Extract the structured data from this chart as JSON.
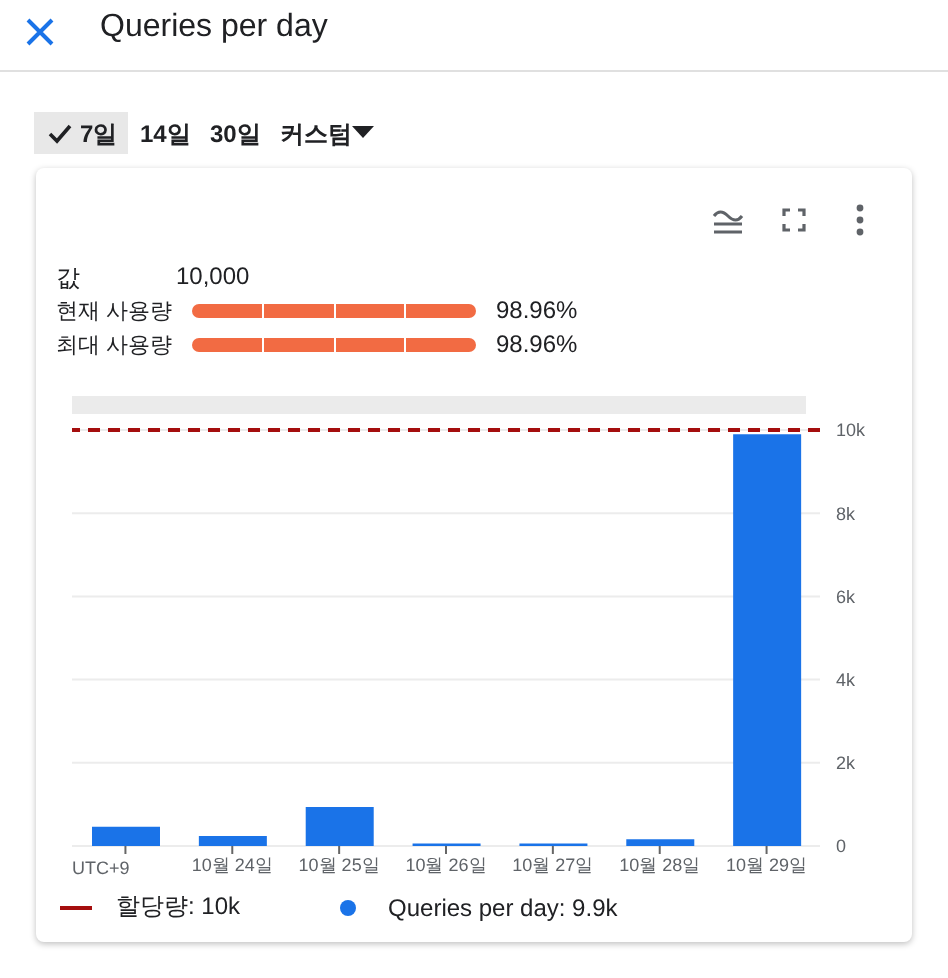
{
  "chart_data": {
    "type": "bar",
    "title": "Queries per day",
    "categories": [
      null,
      "10월 24일",
      "10월 25일",
      "10월 26일",
      "10월 27일",
      "10월 28일",
      "10월 29일"
    ],
    "series": [
      {
        "name": "Queries per day: 9.9k",
        "color": "#1a73e8",
        "values": [
          460,
          240,
          940,
          60,
          60,
          160,
          9900
        ]
      }
    ],
    "ylim": [
      0,
      10000
    ],
    "yticks": [
      0,
      {
        "value": 2000,
        "label": "2k"
      },
      {
        "value": 4000,
        "label": "4k"
      },
      {
        "value": 6000,
        "label": "6k"
      },
      {
        "value": 8000,
        "label": "8k"
      },
      {
        "value": 10000,
        "label": "10k"
      }
    ],
    "ref_lines": [
      {
        "axis": "y",
        "value": 10000,
        "label": "할당량: 10k",
        "color": "#a50e0e",
        "line_style": "dashed"
      }
    ],
    "annotations": [
      "7일",
      "14일",
      "30일",
      "커스텀",
      "값",
      "10,000",
      "현재 사용량",
      "98.96%",
      "최대 사용량",
      "98.96%",
      "UTC+9"
    ],
    "grid": "y",
    "legend": "bottom"
  }
}
